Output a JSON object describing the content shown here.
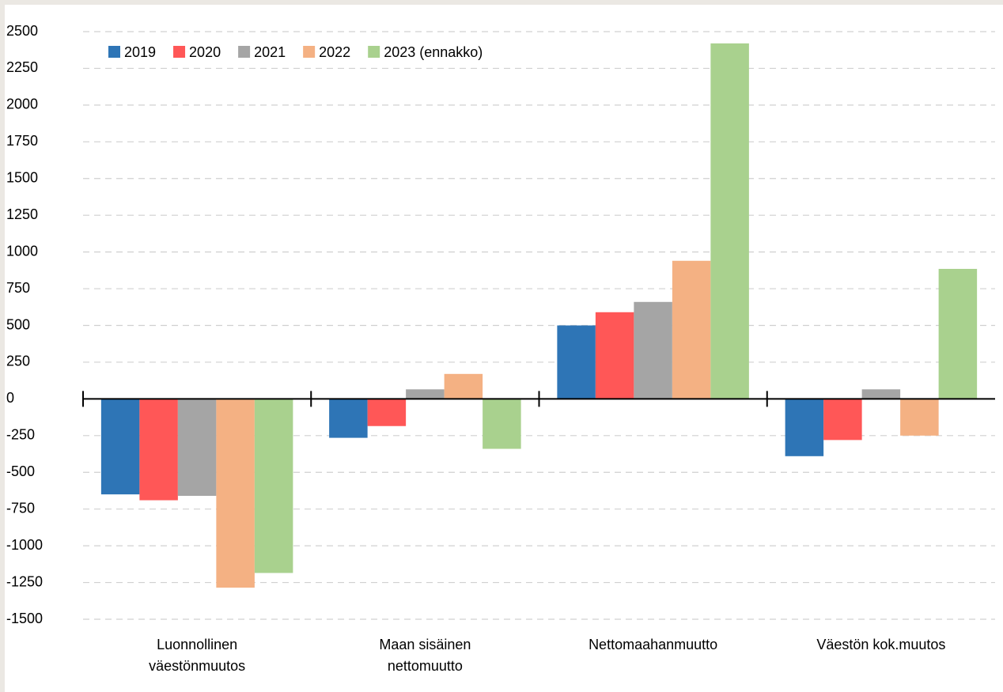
{
  "chart_data": {
    "type": "bar",
    "categories": [
      "Luonnollinen väestönmuutos",
      "Maan sisäinen nettomuutto",
      "Nettomaahanmuutto",
      "Väestön kok.muutos"
    ],
    "series": [
      {
        "name": "2019",
        "color": "#2e75b6",
        "values": [
          -650,
          -265,
          500,
          -390
        ]
      },
      {
        "name": "2020",
        "color": "#ff5757",
        "values": [
          -690,
          -185,
          590,
          -280
        ]
      },
      {
        "name": "2021",
        "color": "#a5a5a5",
        "values": [
          -660,
          65,
          660,
          65
        ]
      },
      {
        "name": "2022",
        "color": "#f4b183",
        "values": [
          -1285,
          170,
          940,
          -250
        ]
      },
      {
        "name": "2023 (ennakko)",
        "color": "#a9d18e",
        "values": [
          -1185,
          -340,
          2420,
          885
        ]
      }
    ],
    "ylim": [
      -1500,
      2500
    ],
    "yticks": [
      -1500,
      -1250,
      -1000,
      -750,
      -500,
      -250,
      0,
      250,
      500,
      750,
      1000,
      1250,
      1500,
      1750,
      2000,
      2250,
      2500
    ],
    "grid": true,
    "legend": "top-left"
  }
}
